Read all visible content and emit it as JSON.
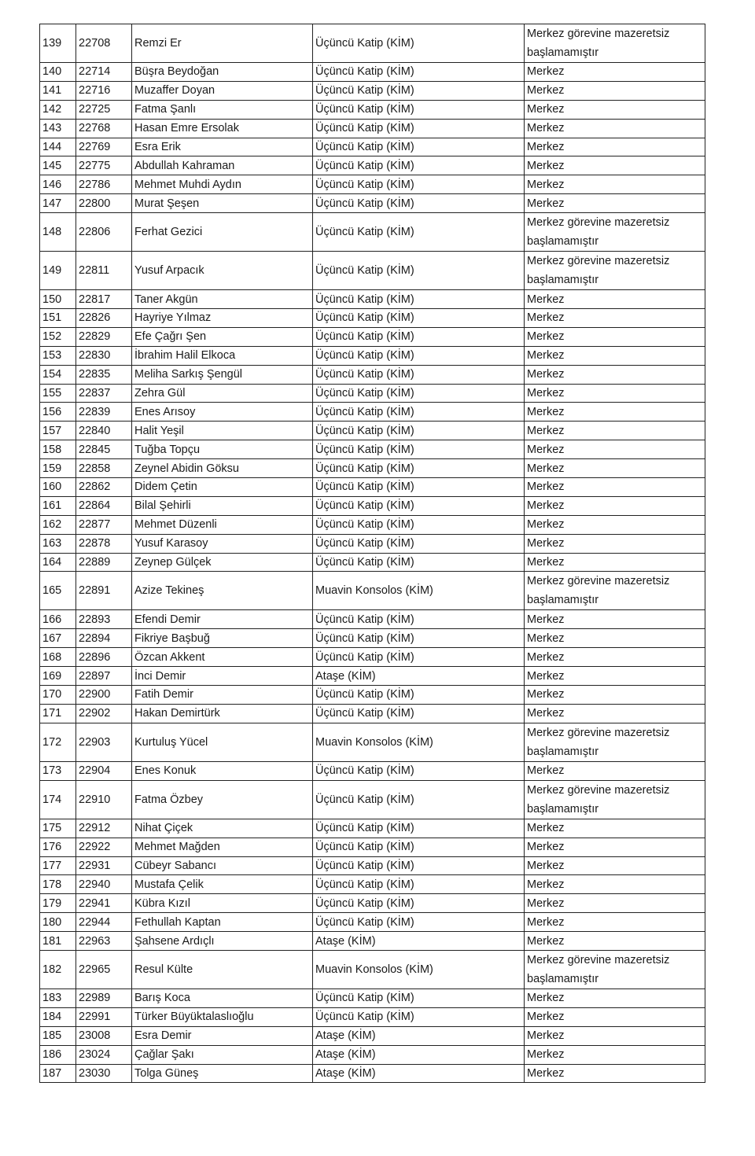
{
  "rows": [
    [
      "139",
      "22708",
      "Remzi Er",
      "Üçüncü Katip (KİM)",
      "Merkez görevine mazeretsiz başlamamıştır"
    ],
    [
      "140",
      "22714",
      "Büşra Beydoğan",
      "Üçüncü Katip (KİM)",
      "Merkez"
    ],
    [
      "141",
      "22716",
      "Muzaffer Doyan",
      "Üçüncü Katip (KİM)",
      "Merkez"
    ],
    [
      "142",
      "22725",
      "Fatma Şanlı",
      "Üçüncü Katip (KİM)",
      "Merkez"
    ],
    [
      "143",
      "22768",
      "Hasan Emre Ersolak",
      "Üçüncü Katip (KİM)",
      "Merkez"
    ],
    [
      "144",
      "22769",
      "Esra Erik",
      "Üçüncü Katip (KİM)",
      "Merkez"
    ],
    [
      "145",
      "22775",
      "Abdullah Kahraman",
      "Üçüncü Katip (KİM)",
      "Merkez"
    ],
    [
      "146",
      "22786",
      "Mehmet Muhdi Aydın",
      "Üçüncü Katip (KİM)",
      "Merkez"
    ],
    [
      "147",
      "22800",
      "Murat Şeşen",
      "Üçüncü Katip (KİM)",
      "Merkez"
    ],
    [
      "148",
      "22806",
      "Ferhat Gezici",
      "Üçüncü Katip (KİM)",
      "Merkez görevine mazeretsiz başlamamıştır"
    ],
    [
      "149",
      "22811",
      "Yusuf Arpacık",
      "Üçüncü Katip (KİM)",
      "Merkez görevine mazeretsiz başlamamıştır"
    ],
    [
      "150",
      "22817",
      "Taner Akgün",
      "Üçüncü Katip (KİM)",
      "Merkez"
    ],
    [
      "151",
      "22826",
      "Hayriye Yılmaz",
      "Üçüncü Katip (KİM)",
      "Merkez"
    ],
    [
      "152",
      "22829",
      "Efe Çağrı Şen",
      "Üçüncü Katip (KİM)",
      "Merkez"
    ],
    [
      "153",
      "22830",
      "İbrahim Halil Elkoca",
      "Üçüncü Katip (KİM)",
      "Merkez"
    ],
    [
      "154",
      "22835",
      "Meliha Sarkış Şengül",
      "Üçüncü Katip (KİM)",
      "Merkez"
    ],
    [
      "155",
      "22837",
      "Zehra Gül",
      "Üçüncü Katip (KİM)",
      "Merkez"
    ],
    [
      "156",
      "22839",
      "Enes Arısoy",
      "Üçüncü Katip (KİM)",
      "Merkez"
    ],
    [
      "157",
      "22840",
      "Halit Yeşil",
      "Üçüncü Katip (KİM)",
      "Merkez"
    ],
    [
      "158",
      "22845",
      "Tuğba Topçu",
      "Üçüncü Katip (KİM)",
      "Merkez"
    ],
    [
      "159",
      "22858",
      "Zeynel Abidin Göksu",
      "Üçüncü Katip (KİM)",
      "Merkez"
    ],
    [
      "160",
      "22862",
      "Didem Çetin",
      "Üçüncü Katip (KİM)",
      "Merkez"
    ],
    [
      "161",
      "22864",
      "Bilal Şehirli",
      "Üçüncü Katip (KİM)",
      "Merkez"
    ],
    [
      "162",
      "22877",
      "Mehmet Düzenli",
      "Üçüncü Katip (KİM)",
      "Merkez"
    ],
    [
      "163",
      "22878",
      "Yusuf Karasoy",
      "Üçüncü Katip (KİM)",
      "Merkez"
    ],
    [
      "164",
      "22889",
      "Zeynep Gülçek",
      "Üçüncü Katip (KİM)",
      "Merkez"
    ],
    [
      "165",
      "22891",
      "Azize Tekineş",
      "Muavin Konsolos (KİM)",
      "Merkez görevine mazeretsiz başlamamıştır"
    ],
    [
      "166",
      "22893",
      "Efendi Demir",
      "Üçüncü Katip (KİM)",
      "Merkez"
    ],
    [
      "167",
      "22894",
      "Fikriye Başbuğ",
      "Üçüncü Katip (KİM)",
      "Merkez"
    ],
    [
      "168",
      "22896",
      "Özcan Akkent",
      "Üçüncü Katip (KİM)",
      "Merkez"
    ],
    [
      "169",
      "22897",
      "İnci Demir",
      "Ataşe (KİM)",
      "Merkez"
    ],
    [
      "170",
      "22900",
      "Fatih Demir",
      "Üçüncü Katip (KİM)",
      "Merkez"
    ],
    [
      "171",
      "22902",
      "Hakan Demirtürk",
      "Üçüncü Katip (KİM)",
      "Merkez"
    ],
    [
      "172",
      "22903",
      "Kurtuluş Yücel",
      "Muavin Konsolos (KİM)",
      "Merkez görevine mazeretsiz başlamamıştır"
    ],
    [
      "173",
      "22904",
      "Enes Konuk",
      "Üçüncü Katip (KİM)",
      "Merkez"
    ],
    [
      "174",
      "22910",
      "Fatma Özbey",
      "Üçüncü Katip (KİM)",
      "Merkez görevine mazeretsiz başlamamıştır"
    ],
    [
      "175",
      "22912",
      "Nihat Çiçek",
      "Üçüncü Katip (KİM)",
      "Merkez"
    ],
    [
      "176",
      "22922",
      "Mehmet Mağden",
      "Üçüncü Katip (KİM)",
      "Merkez"
    ],
    [
      "177",
      "22931",
      "Cübeyr Sabancı",
      "Üçüncü Katip (KİM)",
      "Merkez"
    ],
    [
      "178",
      "22940",
      "Mustafa Çelik",
      "Üçüncü Katip (KİM)",
      "Merkez"
    ],
    [
      "179",
      "22941",
      "Kübra Kızıl",
      "Üçüncü Katip (KİM)",
      "Merkez"
    ],
    [
      "180",
      "22944",
      "Fethullah Kaptan",
      "Üçüncü Katip (KİM)",
      "Merkez"
    ],
    [
      "181",
      "22963",
      "Şahsene Ardıçlı",
      "Ataşe (KİM)",
      "Merkez"
    ],
    [
      "182",
      "22965",
      "Resul Külte",
      "Muavin Konsolos (KİM)",
      "Merkez görevine mazeretsiz başlamamıştır"
    ],
    [
      "183",
      "22989",
      "Barış Koca",
      "Üçüncü Katip (KİM)",
      "Merkez"
    ],
    [
      "184",
      "22991",
      "Türker Büyüktalaslıoğlu",
      "Üçüncü Katip (KİM)",
      "Merkez"
    ],
    [
      "185",
      "23008",
      "Esra Demir",
      "Ataşe (KİM)",
      "Merkez"
    ],
    [
      "186",
      "23024",
      "Çağlar Şakı",
      "Ataşe (KİM)",
      "Merkez"
    ],
    [
      "187",
      "23030",
      "Tolga Güneş",
      "Ataşe (KİM)",
      "Merkez"
    ]
  ]
}
